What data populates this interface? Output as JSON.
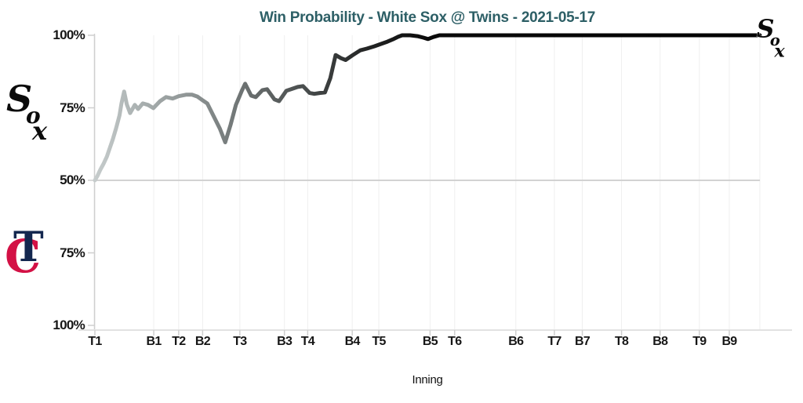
{
  "chart": {
    "title": "Win Probability - White Sox @ Twins - 2021-05-17",
    "title_color": "#2d5f66",
    "xlabel": "Inning"
  },
  "logos": {
    "away": {
      "name": "Chicago White Sox",
      "letters": [
        "S",
        "o",
        "x"
      ],
      "color": "#0b0b0b"
    },
    "home": {
      "name": "Minnesota Twins",
      "letters": [
        "T",
        "C"
      ],
      "t_color": "#13274F",
      "c_color": "#D31145"
    }
  },
  "chart_data": {
    "type": "line",
    "title": "Win Probability - White Sox @ Twins - 2021-05-17",
    "xlabel": "Inning",
    "x_axis_note": "x = game progress (% across plot); ticks mark inning halves at uneven spacing",
    "y_axis_note": "White Sox win probability %, mirrored axis: top = Sox 100%, middle = 50%, bottom = Twins 100%",
    "ylim": [
      0,
      100
    ],
    "grid": "vertical per inning half + midline at 50%",
    "legend": "none (team logos identify halves)",
    "colors": {
      "grid": "#efefef",
      "mid_grid": "#d2d2d2",
      "axis": "#cfcfcf",
      "tick_text": "#161616"
    },
    "line_gradient": [
      [
        0,
        "#c6cccc"
      ],
      [
        8,
        "#a4abab"
      ],
      [
        16,
        "#888e8e"
      ],
      [
        24,
        "#666b6b"
      ],
      [
        32,
        "#474b4b"
      ],
      [
        40,
        "#262828"
      ],
      [
        50,
        "#0a0a0a"
      ],
      [
        100,
        "#000000"
      ]
    ],
    "y_ticks": [
      {
        "label": "100%",
        "wp": 100
      },
      {
        "label": "75%",
        "wp": 75
      },
      {
        "label": "50%",
        "wp": 50
      },
      {
        "label": "75%",
        "wp": 25
      },
      {
        "label": "100%",
        "wp": 0
      }
    ],
    "x_ticks": [
      {
        "label": "T1",
        "pos": 0
      },
      {
        "label": "B1",
        "pos": 8.85
      },
      {
        "label": "T2",
        "pos": 12.6
      },
      {
        "label": "B2",
        "pos": 16.2
      },
      {
        "label": "T3",
        "pos": 21.8
      },
      {
        "label": "B3",
        "pos": 28.5
      },
      {
        "label": "T4",
        "pos": 32.0
      },
      {
        "label": "B4",
        "pos": 38.7
      },
      {
        "label": "T5",
        "pos": 42.7
      },
      {
        "label": "B5",
        "pos": 50.4
      },
      {
        "label": "T6",
        "pos": 54.1
      },
      {
        "label": "B6",
        "pos": 63.3
      },
      {
        "label": "T7",
        "pos": 69.1
      },
      {
        "label": "B7",
        "pos": 73.3
      },
      {
        "label": "T8",
        "pos": 79.2
      },
      {
        "label": "B8",
        "pos": 85.0
      },
      {
        "label": "T9",
        "pos": 90.9
      },
      {
        "label": "B9",
        "pos": 95.4
      }
    ],
    "points": [
      [
        0,
        50
      ],
      [
        0.4,
        51.6
      ],
      [
        0.8,
        53.6
      ],
      [
        1.3,
        55.7
      ],
      [
        1.8,
        58.2
      ],
      [
        2.2,
        60.9
      ],
      [
        2.7,
        64.2
      ],
      [
        3.2,
        68.0
      ],
      [
        3.7,
        72.4
      ],
      [
        4.0,
        76.5
      ],
      [
        4.4,
        80.6
      ],
      [
        4.8,
        76.2
      ],
      [
        5.3,
        73.2
      ],
      [
        6.0,
        76.0
      ],
      [
        6.5,
        74.6
      ],
      [
        7.2,
        76.5
      ],
      [
        8.0,
        76.0
      ],
      [
        8.8,
        74.9
      ],
      [
        9.8,
        77.3
      ],
      [
        10.7,
        78.7
      ],
      [
        11.7,
        78.2
      ],
      [
        12.6,
        79.0
      ],
      [
        13.7,
        79.5
      ],
      [
        14.6,
        79.5
      ],
      [
        15.4,
        78.9
      ],
      [
        16.2,
        77.6
      ],
      [
        16.9,
        76.5
      ],
      [
        17.8,
        72.4
      ],
      [
        18.8,
        67.8
      ],
      [
        19.6,
        63.1
      ],
      [
        20.4,
        69.1
      ],
      [
        21.2,
        76.0
      ],
      [
        22.1,
        80.9
      ],
      [
        22.6,
        83.3
      ],
      [
        23.5,
        79.2
      ],
      [
        24.2,
        78.7
      ],
      [
        25.2,
        81.1
      ],
      [
        25.9,
        81.4
      ],
      [
        27.0,
        77.9
      ],
      [
        27.7,
        77.3
      ],
      [
        28.8,
        80.9
      ],
      [
        29.5,
        81.4
      ],
      [
        30.5,
        82.2
      ],
      [
        31.3,
        82.5
      ],
      [
        32.3,
        80.1
      ],
      [
        33.0,
        79.8
      ],
      [
        33.8,
        80.1
      ],
      [
        34.6,
        80.3
      ],
      [
        35.4,
        85.2
      ],
      [
        36.2,
        93.2
      ],
      [
        37.0,
        92.1
      ],
      [
        37.7,
        91.5
      ],
      [
        38.8,
        93.2
      ],
      [
        39.9,
        94.8
      ],
      [
        40.9,
        95.4
      ],
      [
        42.0,
        96.2
      ],
      [
        43.0,
        97.0
      ],
      [
        44.0,
        97.8
      ],
      [
        44.8,
        98.6
      ],
      [
        45.6,
        99.5
      ],
      [
        46.2,
        100
      ],
      [
        47.4,
        100
      ],
      [
        48.5,
        99.7
      ],
      [
        49.4,
        99.2
      ],
      [
        50.1,
        98.7
      ],
      [
        50.9,
        99.4
      ],
      [
        51.8,
        100
      ],
      [
        55,
        100
      ],
      [
        60,
        100
      ],
      [
        65,
        100
      ],
      [
        70,
        100
      ],
      [
        75,
        100
      ],
      [
        80,
        100
      ],
      [
        85,
        100
      ],
      [
        90,
        100
      ],
      [
        95,
        100
      ],
      [
        100,
        100
      ]
    ]
  }
}
